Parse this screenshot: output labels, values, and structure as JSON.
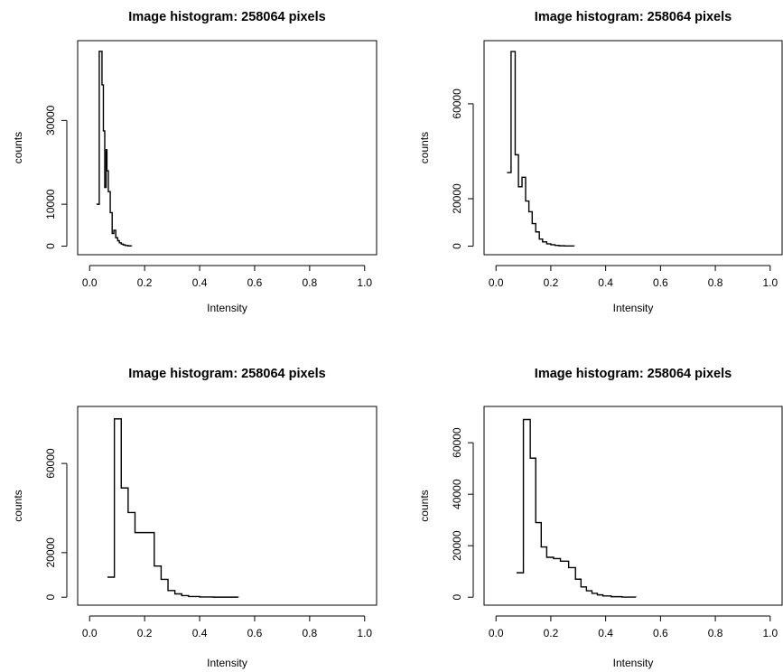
{
  "chart_data": [
    {
      "type": "line",
      "subtype": "histogram-step",
      "title": "Image histogram: 258064 pixels",
      "xlabel": "Intensity",
      "ylabel": "counts",
      "xlim": [
        0,
        1
      ],
      "ylim": [
        0,
        47000
      ],
      "xticks": [
        0.0,
        0.2,
        0.4,
        0.6,
        0.8,
        1.0
      ],
      "xtick_labels": [
        "0.0",
        "0.2",
        "0.4",
        "0.6",
        "0.8",
        "1.0"
      ],
      "yticks": [
        0,
        10000,
        30000
      ],
      "ytick_labels": [
        "0",
        "10000",
        "30000"
      ],
      "x": [
        0.025,
        0.035,
        0.045,
        0.05,
        0.055,
        0.06,
        0.063,
        0.068,
        0.075,
        0.082,
        0.088,
        0.095,
        0.102,
        0.108,
        0.115,
        0.122,
        0.13,
        0.14,
        0.152
      ],
      "values": [
        10000,
        46500,
        38500,
        27500,
        14000,
        23000,
        18000,
        13000,
        8000,
        3000,
        3800,
        2000,
        1300,
        800,
        500,
        300,
        150,
        60,
        0
      ]
    },
    {
      "type": "line",
      "subtype": "histogram-step",
      "title": "Image histogram: 258064 pixels",
      "xlabel": "Intensity",
      "ylabel": "counts",
      "xlim": [
        0,
        1
      ],
      "ylim": [
        0,
        83000
      ],
      "xticks": [
        0.0,
        0.2,
        0.4,
        0.6,
        0.8,
        1.0
      ],
      "xtick_labels": [
        "0.0",
        "0.2",
        "0.4",
        "0.6",
        "0.8",
        "1.0"
      ],
      "yticks": [
        0,
        20000,
        60000
      ],
      "ytick_labels": [
        "0",
        "20000",
        "60000"
      ],
      "x": [
        0.04,
        0.055,
        0.07,
        0.082,
        0.095,
        0.108,
        0.12,
        0.132,
        0.145,
        0.158,
        0.17,
        0.185,
        0.2,
        0.215,
        0.23,
        0.25,
        0.285
      ],
      "values": [
        31000,
        82000,
        38500,
        25000,
        29000,
        19000,
        14500,
        9500,
        6000,
        3000,
        1800,
        1000,
        600,
        300,
        150,
        60,
        0
      ]
    },
    {
      "type": "line",
      "subtype": "histogram-step",
      "title": "Image histogram: 258064 pixels",
      "xlabel": "Intensity",
      "ylabel": "counts",
      "xlim": [
        0,
        1
      ],
      "ylim": [
        0,
        82000
      ],
      "xticks": [
        0.0,
        0.2,
        0.4,
        0.6,
        0.8,
        1.0
      ],
      "xtick_labels": [
        "0.0",
        "0.2",
        "0.4",
        "0.6",
        "0.8",
        "1.0"
      ],
      "yticks": [
        0,
        20000,
        60000
      ],
      "ytick_labels": [
        "0",
        "20000",
        "60000"
      ],
      "x": [
        0.065,
        0.09,
        0.115,
        0.14,
        0.165,
        0.21,
        0.235,
        0.26,
        0.285,
        0.31,
        0.335,
        0.36,
        0.4,
        0.45,
        0.54
      ],
      "values": [
        9000,
        80000,
        49000,
        38000,
        29000,
        29000,
        14000,
        8000,
        3000,
        1500,
        700,
        300,
        100,
        30,
        0
      ]
    },
    {
      "type": "line",
      "subtype": "histogram-step",
      "title": "Image histogram: 258064 pixels",
      "xlabel": "Intensity",
      "ylabel": "counts",
      "xlim": [
        0,
        1
      ],
      "ylim": [
        0,
        71000
      ],
      "xticks": [
        0.0,
        0.2,
        0.4,
        0.6,
        0.8,
        1.0
      ],
      "xtick_labels": [
        "0.0",
        "0.2",
        "0.4",
        "0.6",
        "0.8",
        "1.0"
      ],
      "yticks": [
        0,
        20000,
        40000,
        60000
      ],
      "ytick_labels": [
        "0",
        "20000",
        "40000",
        "60000"
      ],
      "x": [
        0.075,
        0.1,
        0.125,
        0.145,
        0.165,
        0.185,
        0.21,
        0.235,
        0.265,
        0.29,
        0.31,
        0.33,
        0.35,
        0.37,
        0.39,
        0.42,
        0.46,
        0.51
      ],
      "values": [
        9500,
        69000,
        54000,
        29000,
        19500,
        15500,
        15000,
        14000,
        11500,
        7000,
        4000,
        2500,
        1500,
        900,
        500,
        200,
        60,
        0
      ]
    }
  ]
}
